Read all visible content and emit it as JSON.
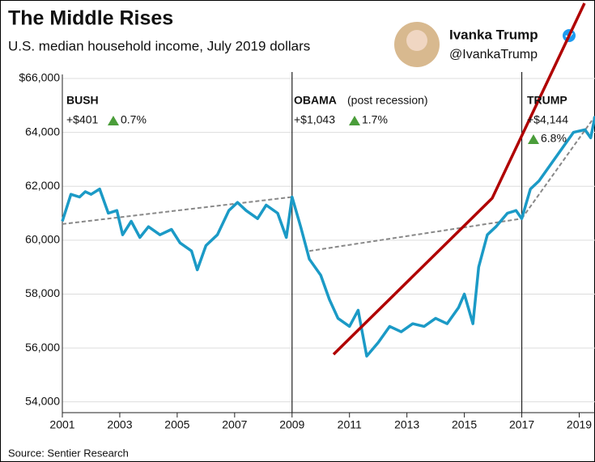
{
  "tweet": {
    "name": "Ivanka Trump",
    "handle": "@IvankaTrump"
  },
  "chart_data": {
    "type": "line",
    "title": "The Middle Rises",
    "subtitle": "U.S. median household income, July 2019 dollars",
    "source": "Source: Sentier Research",
    "xlim": [
      2001,
      2019.55
    ],
    "xticks": [
      2001,
      2003,
      2005,
      2007,
      2009,
      2011,
      2013,
      2015,
      2017,
      2019
    ],
    "ylim": [
      53600,
      66000
    ],
    "yticks": [
      {
        "value": 66000,
        "label": "$66,000"
      },
      {
        "value": 64000,
        "label": "64,000"
      },
      {
        "value": 62000,
        "label": "62,000"
      },
      {
        "value": 60000,
        "label": "60,000"
      },
      {
        "value": 58000,
        "label": "58,000"
      },
      {
        "value": 56000,
        "label": "56,000"
      },
      {
        "value": 54000,
        "label": "54,000"
      }
    ],
    "grid": true,
    "dividers": [
      2009,
      2017
    ],
    "series": [
      {
        "color": "#1b9ac6",
        "x": [
          2001.0,
          2001.3,
          2001.6,
          2001.8,
          2002.0,
          2002.3,
          2002.6,
          2002.9,
          2003.1,
          2003.4,
          2003.7,
          2004.0,
          2004.4,
          2004.8,
          2005.1,
          2005.5,
          2005.7,
          2006.0,
          2006.4,
          2006.8,
          2007.1,
          2007.4,
          2007.8,
          2008.1,
          2008.5,
          2008.8,
          2009.0,
          2009.3,
          2009.6,
          2010.0,
          2010.3,
          2010.6,
          2011.0,
          2011.3,
          2011.6,
          2012.0,
          2012.4,
          2012.8,
          2013.2,
          2013.6,
          2014.0,
          2014.4,
          2014.8,
          2015.0,
          2015.3,
          2015.5,
          2015.8,
          2016.1,
          2016.5,
          2016.8,
          2017.0,
          2017.3,
          2017.6,
          2018.0,
          2018.4,
          2018.8,
          2019.2,
          2019.4,
          2019.55
        ],
        "values": [
          60700,
          61700,
          61600,
          61800,
          61700,
          61900,
          61000,
          61100,
          60200,
          60700,
          60100,
          60500,
          60200,
          60400,
          59900,
          59600,
          58900,
          59800,
          60200,
          61100,
          61400,
          61100,
          60800,
          61300,
          61000,
          60100,
          61600,
          60500,
          59300,
          58700,
          57800,
          57100,
          56800,
          57400,
          55700,
          56200,
          56800,
          56600,
          56900,
          56800,
          57100,
          56900,
          57500,
          58000,
          56900,
          59000,
          60200,
          60500,
          61000,
          61100,
          60800,
          61900,
          62200,
          62800,
          63400,
          64000,
          64100,
          63800,
          64600
        ]
      }
    ],
    "trend_lines": [
      {
        "x": [
          2001,
          2009
        ],
        "values": [
          60600,
          61600
        ]
      },
      {
        "x": [
          2009.6,
          2017
        ],
        "values": [
          59600,
          60800
        ]
      },
      {
        "x": [
          2017,
          2019.55
        ],
        "values": [
          60800,
          64600
        ]
      }
    ],
    "annotations": [
      {
        "title": "BUSH",
        "change": "+$401",
        "pct": "0.7%"
      },
      {
        "title": "OBAMA",
        "note": "(post recession)",
        "change": "+$1,043",
        "pct": "1.7%"
      },
      {
        "title": "TRUMP",
        "change": "+$4,144",
        "pct": "6.8%"
      }
    ]
  }
}
